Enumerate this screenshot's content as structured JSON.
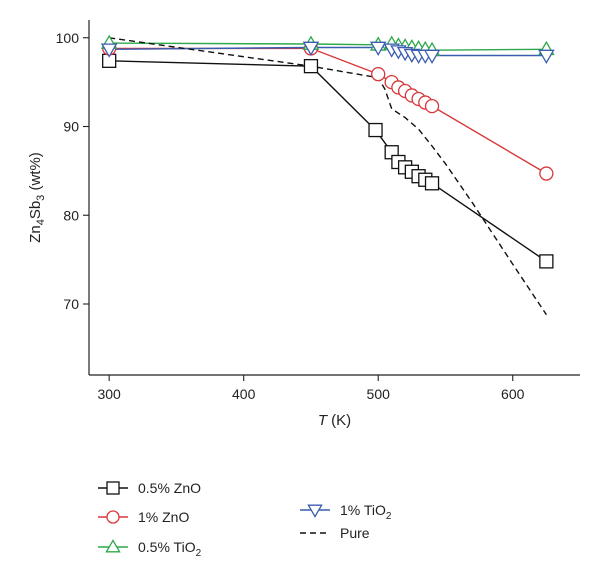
{
  "chart_data": {
    "type": "line",
    "xlabel": {
      "italic": "T",
      "rest": " (K)"
    },
    "ylabel": {
      "base": "Zn",
      "sub1": "4",
      "mid": "Sb",
      "sub2": "3",
      "rest": " (wt%)"
    },
    "xlim": [
      285,
      650
    ],
    "ylim": [
      62,
      102
    ],
    "xticks": [
      300,
      400,
      500,
      600
    ],
    "yticks": [
      70,
      80,
      90,
      100
    ],
    "grid": false,
    "legend_position": "bottom",
    "series": [
      {
        "name": "0.5% ZnO",
        "color": "#111111",
        "marker": "square",
        "dashed": false,
        "x": [
          300,
          450,
          498,
          510,
          515,
          520,
          525,
          530,
          535,
          540,
          625
        ],
        "y": [
          97.4,
          96.8,
          89.6,
          87.1,
          86.0,
          85.4,
          84.9,
          84.4,
          84.0,
          83.6,
          74.8
        ]
      },
      {
        "name": "1% ZnO",
        "color": "#d9373a",
        "marker": "circle",
        "dashed": false,
        "x": [
          300,
          450,
          500,
          510,
          515,
          520,
          525,
          530,
          535,
          540,
          625
        ],
        "y": [
          98.8,
          98.8,
          95.9,
          95.0,
          94.4,
          94.0,
          93.5,
          93.1,
          92.7,
          92.3,
          84.7
        ]
      },
      {
        "name": "0.5% TiO",
        "name_sub": "2",
        "color": "#2ea84a",
        "marker": "triangle-up",
        "dashed": false,
        "x": [
          300,
          450,
          500,
          510,
          515,
          520,
          525,
          530,
          535,
          540,
          625
        ],
        "y": [
          99.4,
          99.3,
          99.2,
          99.3,
          99.1,
          99.0,
          98.9,
          98.8,
          98.7,
          98.6,
          98.7
        ]
      },
      {
        "name": "1% TiO",
        "name_sub": "2",
        "color": "#3a5db0",
        "marker": "triangle-down",
        "dashed": false,
        "x": [
          300,
          450,
          500,
          510,
          515,
          520,
          525,
          530,
          535,
          540,
          625
        ],
        "y": [
          98.7,
          98.9,
          98.9,
          98.7,
          98.5,
          98.3,
          98.1,
          98.0,
          98.0,
          98.0,
          98.0
        ]
      },
      {
        "name": "Pure",
        "color": "#111111",
        "marker": "none",
        "dashed": true,
        "x": [
          300,
          450,
          500,
          505,
          510,
          520,
          530,
          540,
          550,
          570,
          600,
          625
        ],
        "y": [
          100,
          96.8,
          95.5,
          94.2,
          92.0,
          91.0,
          89.7,
          87.8,
          85.8,
          81.4,
          74.5,
          68.8
        ]
      }
    ]
  }
}
